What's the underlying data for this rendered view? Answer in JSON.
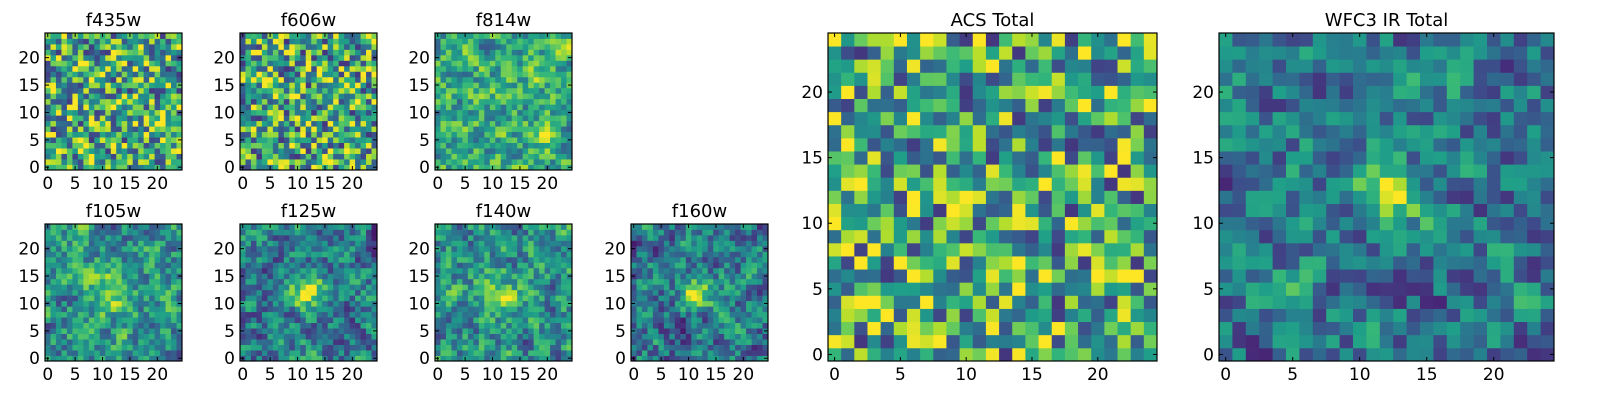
{
  "figure": {
    "colormap": "viridis",
    "colors": {
      "background": "#ffffff",
      "axis": "#000000",
      "viridis_low": "#440154",
      "viridis_mid": "#21918c",
      "viridis_high": "#fde725"
    }
  },
  "chart_data": [
    {
      "type": "heatmap",
      "title": "f435w",
      "grid_size": 25,
      "xlim": [
        0,
        24
      ],
      "ylim": [
        0,
        24
      ],
      "xticks": [
        "0",
        "5",
        "10",
        "15",
        "20"
      ],
      "yticks": [
        "0",
        "5",
        "10",
        "15",
        "20"
      ],
      "values": "low-S/N noise map, no source visible; bright pixels scattered uniformly",
      "peak": null,
      "noise_seed": 11,
      "source_amplitude": 0.0,
      "source_sigma": 2.0,
      "background": 0.62
    },
    {
      "type": "heatmap",
      "title": "f606w",
      "grid_size": 25,
      "xlim": [
        0,
        24
      ],
      "ylim": [
        0,
        24
      ],
      "xticks": [
        "0",
        "5",
        "10",
        "15",
        "20"
      ],
      "yticks": [
        "0",
        "5",
        "10",
        "15",
        "20"
      ],
      "values": "noise map, no source visible",
      "peak": null,
      "noise_seed": 23,
      "source_amplitude": 0.0,
      "source_sigma": 2.0,
      "background": 0.6
    },
    {
      "type": "heatmap",
      "title": "f814w",
      "grid_size": 25,
      "xlim": [
        0,
        24
      ],
      "ylim": [
        0,
        24
      ],
      "xticks": [
        "0",
        "5",
        "10",
        "15",
        "20"
      ],
      "yticks": [
        "0",
        "5",
        "10",
        "15",
        "20"
      ],
      "values": "noise map, faint excess near lower right",
      "peak": [
        20,
        6
      ],
      "noise_seed": 37,
      "source_amplitude": 0.15,
      "source_sigma": 2.0,
      "background": 0.6
    },
    {
      "type": "heatmap",
      "title": "f105w",
      "grid_size": 25,
      "xlim": [
        0,
        24
      ],
      "ylim": [
        0,
        24
      ],
      "xticks": [
        "0",
        "5",
        "10",
        "15",
        "20"
      ],
      "yticks": [
        "0",
        "5",
        "10",
        "15",
        "20"
      ],
      "values": "smoothed noise with weak central source",
      "peak": [
        12,
        12
      ],
      "noise_seed": 41,
      "source_amplitude": 0.3,
      "source_sigma": 3.0,
      "background": 0.5
    },
    {
      "type": "heatmap",
      "title": "f125w",
      "grid_size": 25,
      "xlim": [
        0,
        24
      ],
      "ylim": [
        0,
        24
      ],
      "xticks": [
        "0",
        "5",
        "10",
        "15",
        "20"
      ],
      "yticks": [
        "0",
        "5",
        "10",
        "15",
        "20"
      ],
      "values": "smoothed noise with compact central source",
      "peak": [
        12,
        12
      ],
      "noise_seed": 53,
      "source_amplitude": 0.45,
      "source_sigma": 2.2,
      "background": 0.42
    },
    {
      "type": "heatmap",
      "title": "f140w",
      "grid_size": 25,
      "xlim": [
        0,
        24
      ],
      "ylim": [
        0,
        24
      ],
      "xticks": [
        "0",
        "5",
        "10",
        "15",
        "20"
      ],
      "yticks": [
        "0",
        "5",
        "10",
        "15",
        "20"
      ],
      "values": "smoothed noise, faint central source",
      "peak": [
        12,
        12
      ],
      "noise_seed": 67,
      "source_amplitude": 0.25,
      "source_sigma": 2.5,
      "background": 0.5
    },
    {
      "type": "heatmap",
      "title": "f160w",
      "grid_size": 25,
      "xlim": [
        0,
        24
      ],
      "ylim": [
        0,
        24
      ],
      "xticks": [
        "0",
        "5",
        "10",
        "15",
        "20"
      ],
      "yticks": [
        "0",
        "5",
        "10",
        "15",
        "20"
      ],
      "values": "smoothed noise with bright central source",
      "peak": [
        12,
        12
      ],
      "noise_seed": 79,
      "source_amplitude": 0.55,
      "source_sigma": 2.0,
      "background": 0.4
    },
    {
      "type": "heatmap",
      "title": "ACS Total",
      "grid_size": 25,
      "xlim": [
        0,
        24
      ],
      "ylim": [
        0,
        24
      ],
      "xticks": [
        "0",
        "5",
        "10",
        "15",
        "20"
      ],
      "yticks": [
        "0",
        "5",
        "10",
        "15",
        "20"
      ],
      "values": "coadded ACS noise map, no clear source",
      "peak": null,
      "noise_seed": 97,
      "source_amplitude": 0.0,
      "source_sigma": 2.0,
      "background": 0.6
    },
    {
      "type": "heatmap",
      "title": "WFC3 IR Total",
      "grid_size": 25,
      "xlim": [
        0,
        24
      ],
      "ylim": [
        0,
        24
      ],
      "xticks": [
        "0",
        "5",
        "10",
        "15",
        "20"
      ],
      "yticks": [
        "0",
        "5",
        "10",
        "15",
        "20"
      ],
      "values": "coadded WFC3 IR map with bright compact source at center",
      "peak": [
        12,
        12
      ],
      "noise_seed": 131,
      "source_amplitude": 0.6,
      "source_sigma": 1.6,
      "background": 0.4
    }
  ]
}
